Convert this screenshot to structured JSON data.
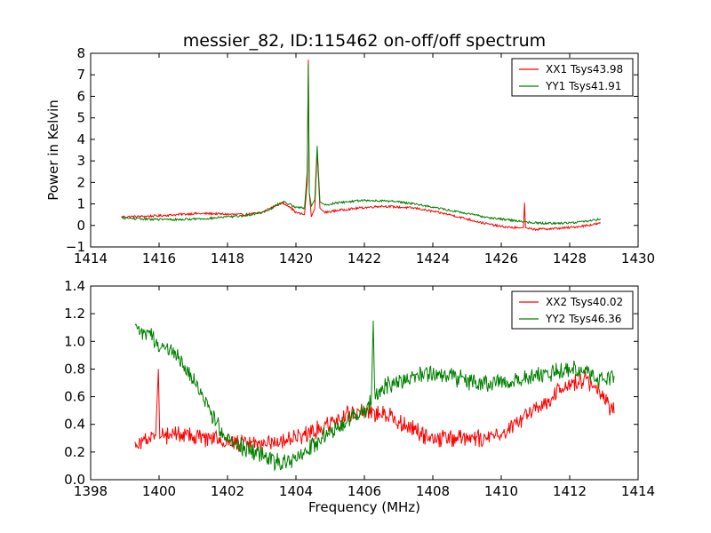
{
  "figure": {
    "title": "messier_82, ID:115462 on-off/off spectrum",
    "xlabel": "Frequency (MHz)",
    "colors": {
      "XX": "#ff0000",
      "YY": "#008000",
      "axes": "#000000",
      "background": "#ffffff"
    }
  },
  "chart_data": [
    {
      "type": "line",
      "title": "messier_82, ID:115462 on-off/off spectrum",
      "xlabel": "",
      "ylabel": "Power in Kelvin",
      "xlim": [
        1414,
        1430
      ],
      "ylim": [
        -1,
        8
      ],
      "xticks": [
        "1414",
        "1416",
        "1418",
        "1420",
        "1422",
        "1424",
        "1426",
        "1428",
        "1430"
      ],
      "yticks": [
        "−1",
        "0",
        "1",
        "2",
        "3",
        "4",
        "5",
        "6",
        "7",
        "8"
      ],
      "grid": false,
      "legend_position": "top-right",
      "series": [
        {
          "name": "XX1 Tsys43.98",
          "color": "#ff0000",
          "x": [
            1414.9,
            1415.5,
            1416.0,
            1416.5,
            1417.0,
            1417.5,
            1418.0,
            1418.5,
            1419.0,
            1419.3,
            1419.6,
            1419.8,
            1420.0,
            1420.25,
            1420.33,
            1420.36,
            1420.39,
            1420.45,
            1420.55,
            1420.62,
            1420.7,
            1420.85,
            1421.2,
            1421.8,
            1422.5,
            1423.0,
            1423.5,
            1424.0,
            1424.5,
            1425.0,
            1425.5,
            1426.0,
            1426.5,
            1426.65,
            1426.68,
            1426.71,
            1426.8,
            1427.0,
            1427.5,
            1428.0,
            1428.5,
            1428.9
          ],
          "y": [
            0.4,
            0.42,
            0.45,
            0.5,
            0.55,
            0.55,
            0.52,
            0.5,
            0.6,
            0.85,
            1.05,
            0.9,
            0.6,
            0.5,
            2.0,
            7.7,
            1.5,
            0.4,
            0.8,
            3.5,
            0.8,
            0.6,
            0.7,
            0.8,
            0.9,
            0.85,
            0.8,
            0.65,
            0.5,
            0.3,
            0.1,
            -0.05,
            -0.12,
            -0.1,
            1.05,
            -0.1,
            -0.15,
            -0.18,
            -0.15,
            -0.1,
            0.0,
            0.1
          ]
        },
        {
          "name": "YY1 Tsys41.91",
          "color": "#008000",
          "x": [
            1414.9,
            1415.5,
            1416.0,
            1416.5,
            1417.0,
            1417.5,
            1418.0,
            1418.5,
            1419.0,
            1419.3,
            1419.6,
            1419.8,
            1420.0,
            1420.25,
            1420.33,
            1420.36,
            1420.39,
            1420.45,
            1420.55,
            1420.62,
            1420.7,
            1420.85,
            1421.2,
            1421.8,
            1422.5,
            1423.0,
            1423.5,
            1424.0,
            1424.5,
            1425.0,
            1425.5,
            1426.0,
            1426.5,
            1427.0,
            1427.5,
            1428.0,
            1428.5,
            1428.9
          ],
          "y": [
            0.35,
            0.3,
            0.28,
            0.27,
            0.3,
            0.33,
            0.4,
            0.45,
            0.6,
            0.8,
            1.1,
            1.0,
            0.85,
            0.8,
            2.5,
            7.5,
            1.5,
            0.9,
            1.2,
            3.7,
            1.1,
            0.95,
            1.05,
            1.15,
            1.15,
            1.1,
            1.0,
            0.85,
            0.7,
            0.55,
            0.4,
            0.3,
            0.2,
            0.12,
            0.1,
            0.12,
            0.2,
            0.3
          ]
        }
      ]
    },
    {
      "type": "line",
      "title": "",
      "xlabel": "Frequency (MHz)",
      "ylabel": "",
      "xlim": [
        1398,
        1414
      ],
      "ylim": [
        0.0,
        1.4
      ],
      "xticks": [
        "1398",
        "1400",
        "1402",
        "1404",
        "1406",
        "1408",
        "1410",
        "1412",
        "1414"
      ],
      "yticks": [
        "0.0",
        "0.2",
        "0.4",
        "0.6",
        "0.8",
        "1.0",
        "1.2",
        "1.4"
      ],
      "grid": false,
      "legend_position": "top-right",
      "series": [
        {
          "name": "XX2 Tsys40.02",
          "color": "#ff0000",
          "x": [
            1399.3,
            1399.6,
            1399.9,
            1399.98,
            1400.02,
            1400.1,
            1400.5,
            1401.0,
            1401.5,
            1402.0,
            1402.5,
            1403.0,
            1403.5,
            1404.0,
            1404.5,
            1405.0,
            1405.5,
            1406.0,
            1406.5,
            1407.0,
            1407.5,
            1408.0,
            1408.5,
            1409.0,
            1409.5,
            1410.0,
            1410.5,
            1411.0,
            1411.5,
            1412.0,
            1412.5,
            1413.0,
            1413.3
          ],
          "y": [
            0.25,
            0.3,
            0.32,
            0.8,
            0.3,
            0.32,
            0.33,
            0.32,
            0.3,
            0.28,
            0.26,
            0.27,
            0.28,
            0.3,
            0.35,
            0.42,
            0.47,
            0.5,
            0.48,
            0.42,
            0.35,
            0.3,
            0.3,
            0.29,
            0.3,
            0.33,
            0.42,
            0.52,
            0.6,
            0.7,
            0.72,
            0.6,
            0.48
          ]
        },
        {
          "name": "YY2 Tsys46.36",
          "color": "#008000",
          "x": [
            1399.3,
            1399.6,
            1399.9,
            1400.2,
            1400.5,
            1400.8,
            1401.0,
            1401.3,
            1401.6,
            1402.0,
            1402.5,
            1403.0,
            1403.5,
            1404.0,
            1404.5,
            1405.0,
            1405.5,
            1406.0,
            1406.2,
            1406.26,
            1406.3,
            1406.5,
            1407.0,
            1407.5,
            1408.0,
            1408.5,
            1409.0,
            1409.5,
            1410.0,
            1410.5,
            1411.0,
            1411.5,
            1412.0,
            1412.5,
            1413.0,
            1413.3
          ],
          "y": [
            1.08,
            1.05,
            1.0,
            0.95,
            0.9,
            0.8,
            0.72,
            0.6,
            0.45,
            0.3,
            0.22,
            0.18,
            0.12,
            0.15,
            0.25,
            0.35,
            0.42,
            0.5,
            0.55,
            1.15,
            0.6,
            0.65,
            0.72,
            0.76,
            0.78,
            0.75,
            0.72,
            0.7,
            0.7,
            0.72,
            0.75,
            0.78,
            0.8,
            0.78,
            0.72,
            0.75
          ]
        }
      ]
    }
  ]
}
